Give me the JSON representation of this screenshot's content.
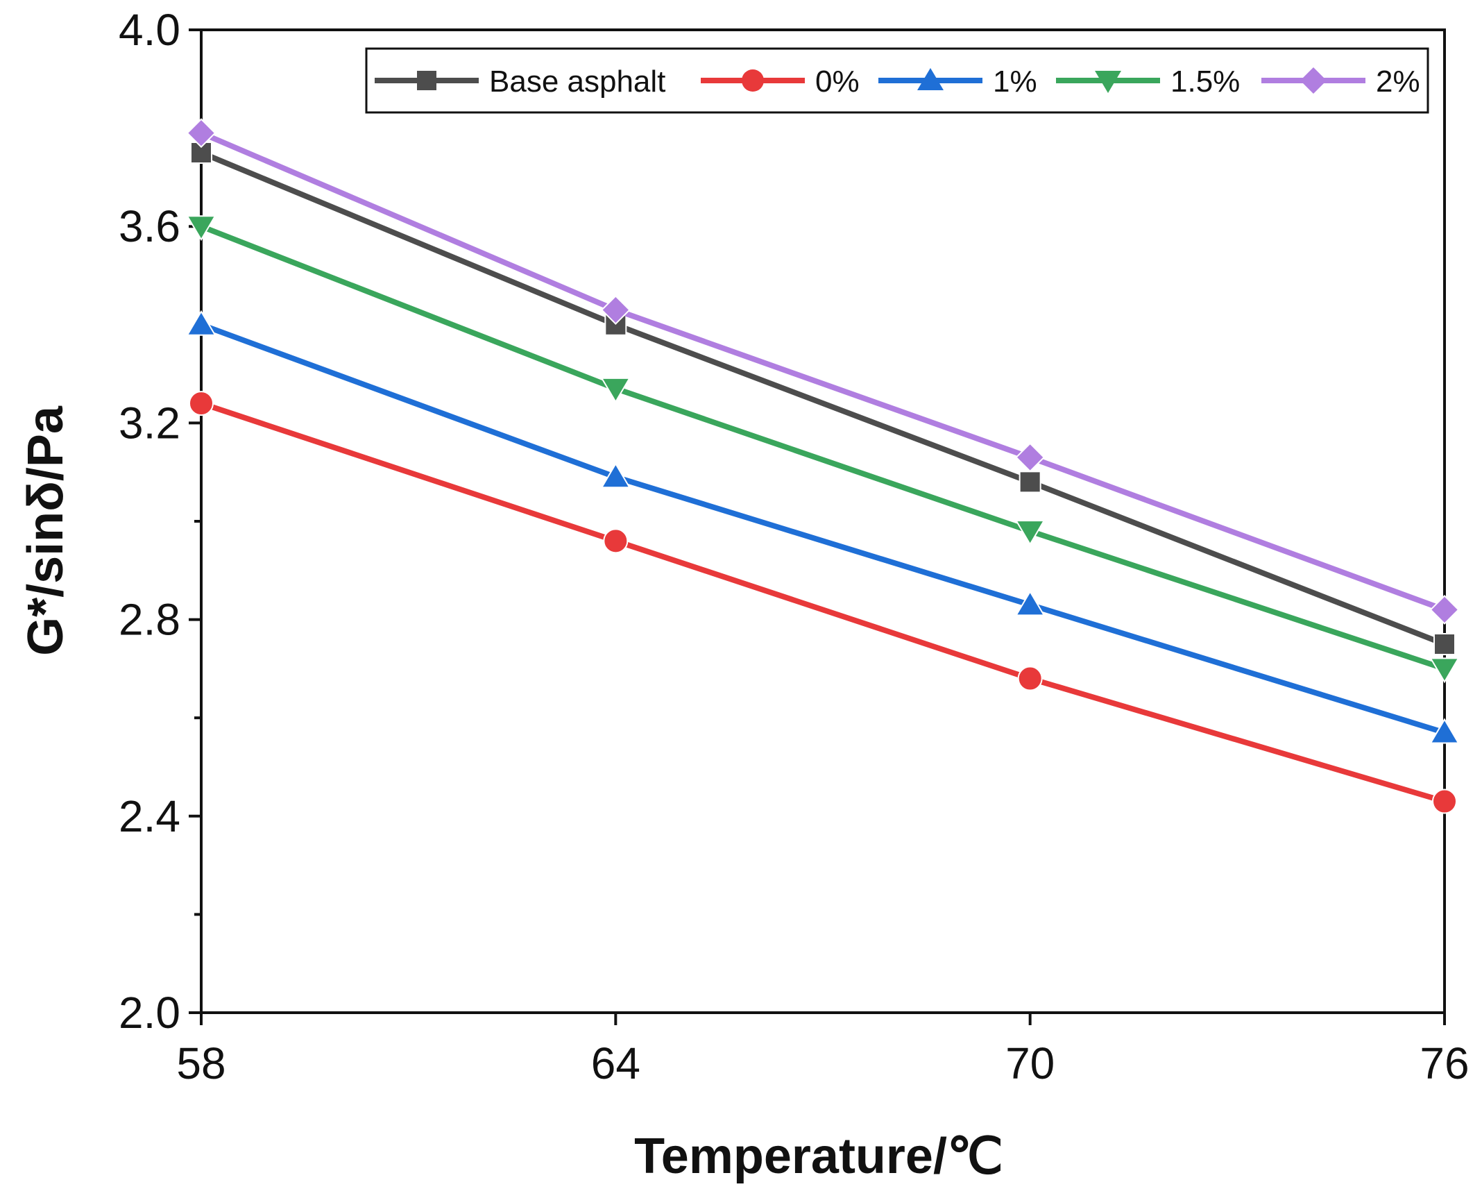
{
  "chart_data": {
    "type": "line",
    "title": "",
    "xlabel": "Temperature/℃",
    "ylabel": "G*/sinδ/Pa",
    "x": [
      58,
      64,
      70,
      76
    ],
    "xlim": [
      58,
      76
    ],
    "ylim": [
      2.0,
      4.0
    ],
    "xticks": [
      "58",
      "64",
      "70",
      "76"
    ],
    "yticks": [
      "2.0",
      "2.4",
      "2.8",
      "3.2",
      "3.6",
      "4.0"
    ],
    "grid": false,
    "legend_position": "top-right",
    "series": [
      {
        "name": "Base asphalt",
        "marker": "square",
        "color": "#4d4d4d",
        "values": [
          3.75,
          3.4,
          3.08,
          2.75
        ]
      },
      {
        "name": "0%",
        "marker": "circle",
        "color": "#e8393a",
        "values": [
          3.24,
          2.96,
          2.68,
          2.43
        ]
      },
      {
        "name": "1%",
        "marker": "triangle-up",
        "color": "#1f6fd6",
        "values": [
          3.4,
          3.09,
          2.83,
          2.57
        ]
      },
      {
        "name": "1.5%",
        "marker": "triangle-down",
        "color": "#3aa65c",
        "values": [
          3.6,
          3.27,
          2.98,
          2.7
        ]
      },
      {
        "name": "2%",
        "marker": "diamond",
        "color": "#b07ee0",
        "values": [
          3.79,
          3.43,
          3.13,
          2.82
        ]
      }
    ]
  }
}
